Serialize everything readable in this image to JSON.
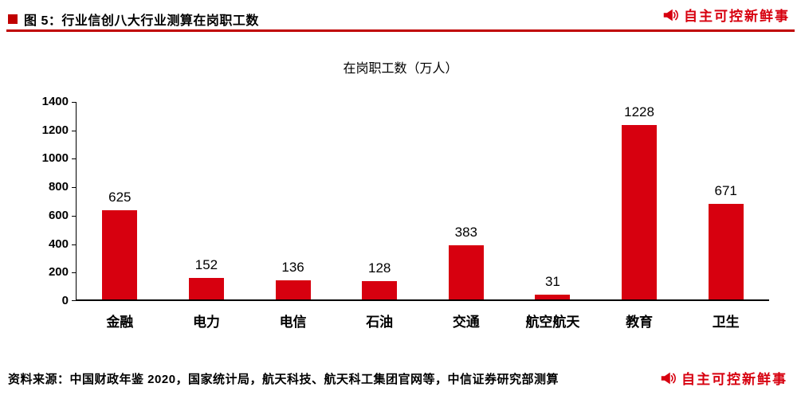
{
  "header": {
    "title": "图 5：行业信创八大行业测算在岗职工数"
  },
  "watermark": {
    "text": "自主可控新鲜事",
    "icon": "megaphone-icon",
    "color": "#d7000f"
  },
  "source": {
    "text": "资料来源：中国财政年鉴 2020，国家统计局，航天科技、航天科工集团官网等，中信证券研究部测算"
  },
  "colors": {
    "accent_red": "#c00000",
    "bar_red": "#d7000f",
    "axis": "#000000"
  },
  "chart_data": {
    "type": "bar",
    "title": "在岗职工数（万人）",
    "xlabel": "",
    "ylabel": "",
    "categories": [
      "金融",
      "电力",
      "电信",
      "石油",
      "交通",
      "航空航天",
      "教育",
      "卫生"
    ],
    "values": [
      625,
      152,
      136,
      128,
      383,
      31,
      1228,
      671
    ],
    "ylim": [
      0,
      1400
    ],
    "yticks": [
      0,
      200,
      400,
      600,
      800,
      1000,
      1200,
      1400
    ],
    "bar_color": "#d7000f",
    "grid": false,
    "legend_position": "none",
    "data_labels": true
  }
}
